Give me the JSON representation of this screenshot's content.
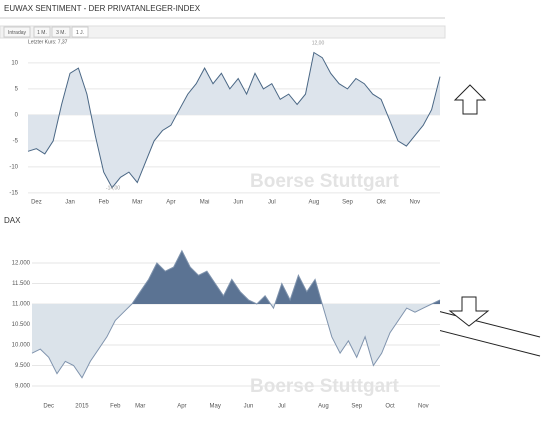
{
  "chart_data": [
    {
      "type": "area",
      "title": "EUWAX SENTIMENT - DER PRIVATANLEGER-INDEX",
      "tabs": [
        "Intraday",
        "1 M.",
        "3 M.",
        "1 J."
      ],
      "active_tab": 3,
      "subtitle": "Letzter Kurs: 7,37",
      "annotations": [
        "12,00",
        "-14,00"
      ],
      "watermark": "Boerse Stuttgart",
      "categories": [
        null,
        "Dez",
        null,
        null,
        null,
        "Jan",
        null,
        null,
        null,
        "Feb",
        null,
        null,
        null,
        "Mar",
        null,
        null,
        null,
        "Apr",
        null,
        null,
        null,
        "Mai",
        null,
        null,
        null,
        "Jun",
        null,
        null,
        null,
        "Jul",
        null,
        null,
        null,
        null,
        "Aug",
        null,
        null,
        null,
        "Sep",
        null,
        null,
        null,
        "Okt",
        null,
        null,
        null,
        "Nov",
        null,
        null,
        null
      ],
      "values": [
        -7,
        -6.5,
        -7.5,
        -5,
        2,
        8,
        9,
        4,
        -4,
        -11,
        -14,
        -12,
        -11,
        -13,
        -9,
        -5,
        -3,
        -2,
        1,
        4,
        6,
        9,
        6,
        8,
        5,
        7,
        4,
        8,
        5,
        6,
        3,
        4,
        2,
        4,
        12,
        11,
        8,
        6,
        5,
        7,
        6,
        4,
        3,
        -1,
        -5,
        -6,
        -4,
        -2,
        1,
        7.37
      ],
      "baseline": 0,
      "color": "#4a6785",
      "fill": "#dde4ec",
      "ylim": [
        -15.4,
        12.1
      ],
      "yticks": [
        10,
        5,
        0,
        -5,
        -10,
        -15
      ],
      "grid": true
    },
    {
      "type": "area",
      "title": "DAX",
      "watermark": "Boerse Stuttgart",
      "categories": [
        null,
        null,
        "Dec",
        null,
        null,
        null,
        "2015",
        null,
        null,
        null,
        "Feb",
        null,
        null,
        "Mar",
        null,
        null,
        null,
        null,
        "Apr",
        null,
        null,
        null,
        "May",
        null,
        null,
        null,
        "Jun",
        null,
        null,
        null,
        "Jul",
        null,
        null,
        null,
        null,
        "Aug",
        null,
        null,
        null,
        "Sep",
        null,
        null,
        null,
        "Oct",
        null,
        null,
        null,
        "Nov",
        null,
        null
      ],
      "values": [
        9800,
        9900,
        9700,
        9300,
        9600,
        9500,
        9200,
        9600,
        9900,
        10200,
        10600,
        10800,
        11000,
        11300,
        11600,
        12000,
        11800,
        11900,
        12300,
        11900,
        11700,
        11800,
        11500,
        11200,
        11600,
        11300,
        11100,
        11000,
        11200,
        10900,
        11500,
        11100,
        11700,
        11300,
        11600,
        10900,
        10200,
        9800,
        10100,
        9700,
        10200,
        9500,
        9800,
        10300,
        10600,
        10900,
        10800,
        10900,
        11000,
        11100
      ],
      "baseline": 11000,
      "color": "#7f93ad",
      "fill": "#dbe3ea",
      "fill_above": "#5b7393",
      "ylim": [
        8660,
        12560
      ],
      "yticks": [
        {
          "value": 12000,
          "label": "12.000"
        },
        {
          "value": 11500,
          "label": "11.500"
        },
        {
          "value": 11000,
          "label": "11.000"
        },
        {
          "value": 10500,
          "label": "10.500"
        },
        {
          "value": 10000,
          "label": "10.000"
        },
        {
          "value": 9500,
          "label": "9.500"
        },
        {
          "value": 9000,
          "label": "9.000"
        }
      ],
      "grid": true
    }
  ]
}
